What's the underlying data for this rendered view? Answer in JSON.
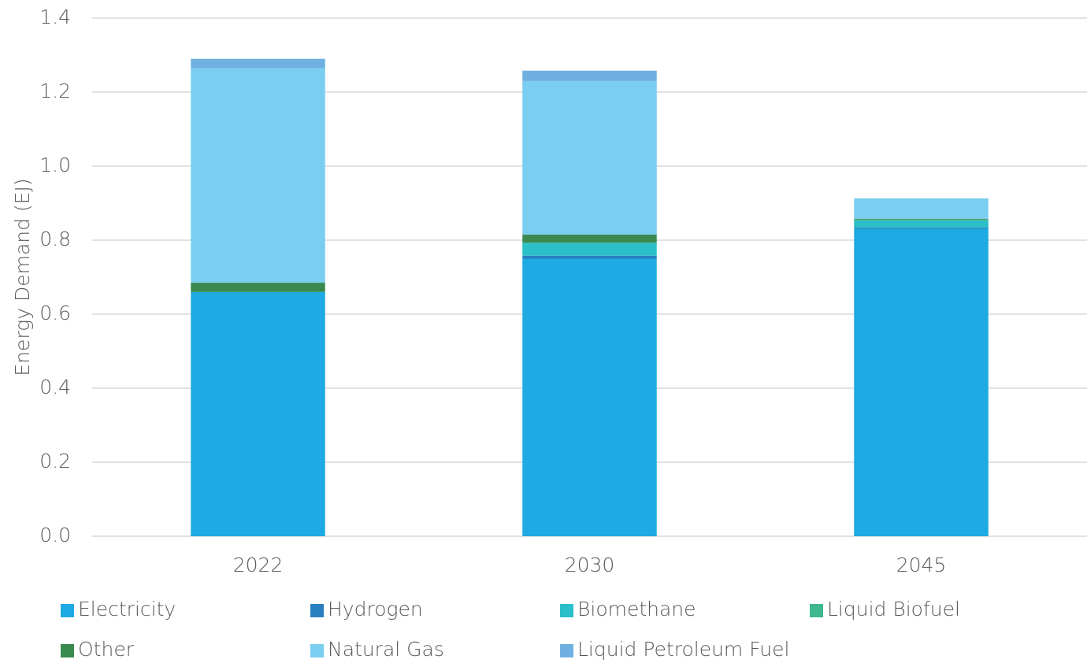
{
  "chart_data": {
    "type": "stacked-bar",
    "ylabel": "Energy Demand (EJ)",
    "categories": [
      "2022",
      "2030",
      "2045"
    ],
    "series": [
      {
        "name": "Electricity",
        "color": "#1eaae2",
        "values": [
          0.66,
          0.75,
          0.83
        ]
      },
      {
        "name": "Hydrogen",
        "color": "#2a7fc1",
        "values": [
          0,
          0.008,
          0.003
        ]
      },
      {
        "name": "Biomethane",
        "color": "#2bbfc9",
        "values": [
          0,
          0.035,
          0.02
        ]
      },
      {
        "name": "Liquid Biofuel",
        "color": "#3db88f",
        "values": [
          0,
          0,
          0.003
        ]
      },
      {
        "name": "Other",
        "color": "#3a8a4f",
        "values": [
          0.025,
          0.022,
          0.002
        ]
      },
      {
        "name": "Natural Gas",
        "color": "#7acef0",
        "values": [
          0.58,
          0.415,
          0.055
        ]
      },
      {
        "name": "Liquid Petroleum Fuel",
        "color": "#6fb0e0",
        "values": [
          0.025,
          0.028,
          0
        ]
      }
    ],
    "ylim": [
      0,
      1.4
    ],
    "yticks": [
      {
        "value": 0,
        "label": "0.0"
      },
      0.2,
      0.4,
      0.6,
      0.8,
      {
        "value": 1,
        "label": "1.0"
      },
      1.2,
      1.4
    ],
    "grid": true,
    "legend": "bottom"
  }
}
